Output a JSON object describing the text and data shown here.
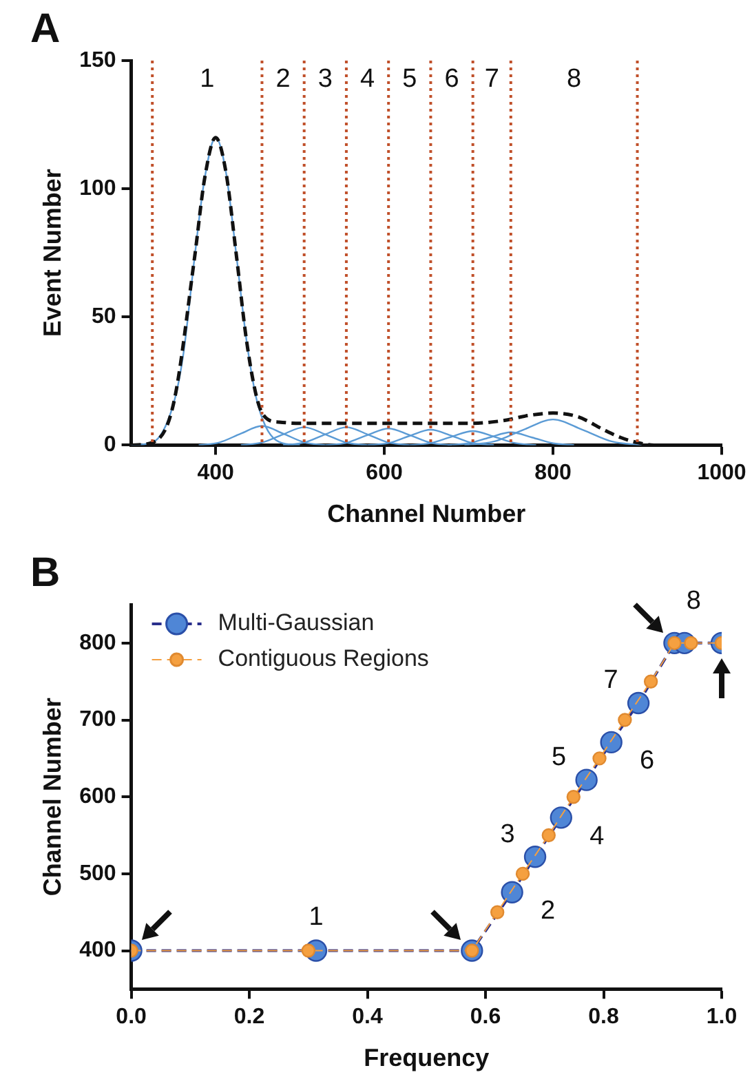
{
  "chart_data": [
    {
      "type": "line",
      "title": "A",
      "xlabel": "Channel Number",
      "ylabel": "Event Number",
      "xlim": [
        300,
        1000
      ],
      "xticks": [
        400,
        600,
        800,
        1000
      ],
      "ylim": [
        0,
        150
      ],
      "yticks": [
        0,
        50,
        100,
        150
      ],
      "grid": false,
      "legend": false,
      "series": [
        {
          "color": "#5b9bd5",
          "x": [
            300,
            325,
            350,
            362,
            375,
            387,
            400,
            412,
            425,
            437,
            450,
            475,
            500
          ],
          "values": [
            0,
            1,
            16,
            36,
            73,
            104,
            120,
            107,
            73,
            40,
            16,
            1.3,
            0
          ]
        },
        {
          "color": "#5b9bd5",
          "x": [
            380,
            405,
            430,
            455,
            480,
            505,
            530
          ],
          "values": [
            0,
            1.1,
            4.5,
            7.5,
            4.5,
            1.1,
            0
          ]
        },
        {
          "color": "#5b9bd5",
          "x": [
            430,
            455,
            480,
            505,
            530,
            555,
            580
          ],
          "values": [
            0,
            1,
            4.2,
            7,
            4.2,
            1,
            0
          ]
        },
        {
          "color": "#5b9bd5",
          "x": [
            480,
            505,
            530,
            555,
            580,
            605,
            630
          ],
          "values": [
            0,
            1,
            4.2,
            7,
            4.2,
            1,
            0
          ]
        },
        {
          "color": "#5b9bd5",
          "x": [
            530,
            555,
            580,
            605,
            630,
            655,
            680
          ],
          "values": [
            0,
            0.9,
            3.9,
            6.5,
            3.9,
            0.9,
            0
          ]
        },
        {
          "color": "#5b9bd5",
          "x": [
            580,
            605,
            630,
            655,
            680,
            705,
            730
          ],
          "values": [
            0,
            0.8,
            3.6,
            6,
            3.6,
            0.8,
            0
          ]
        },
        {
          "color": "#5b9bd5",
          "x": [
            630,
            655,
            680,
            705,
            730,
            755,
            780
          ],
          "values": [
            0,
            0.8,
            3.3,
            5.5,
            3.3,
            0.8,
            0
          ]
        },
        {
          "color": "#5b9bd5",
          "x": [
            675,
            700,
            725,
            750,
            775,
            800,
            825
          ],
          "values": [
            0,
            0.7,
            3,
            5,
            3,
            0.7,
            0
          ]
        },
        {
          "color": "#5b9bd5",
          "x": [
            695,
            730,
            765,
            800,
            835,
            870,
            905
          ],
          "values": [
            0,
            1.4,
            6,
            10,
            6,
            1.4,
            0
          ]
        },
        {
          "color": "#111111",
          "line_style": "dashed",
          "x": [
            300,
            325,
            350,
            375,
            387,
            400,
            412,
            425,
            437,
            450,
            462,
            475,
            500,
            600,
            700,
            740,
            770,
            800,
            830,
            860,
            880,
            900,
            920,
            1000
          ],
          "values": [
            0,
            1,
            16,
            73,
            104,
            120,
            107,
            73,
            40,
            17,
            10,
            9,
            8.5,
            8.5,
            8.5,
            9.5,
            11.5,
            12.5,
            11,
            6,
            3,
            1,
            0,
            0
          ]
        }
      ],
      "ref_lines": [
        {
          "axis": "x",
          "value": 325,
          "color": "#c0502a",
          "line_style": "dotted"
        },
        {
          "axis": "x",
          "value": 455,
          "color": "#c0502a",
          "line_style": "dotted"
        },
        {
          "axis": "x",
          "value": 505,
          "color": "#c0502a",
          "line_style": "dotted"
        },
        {
          "axis": "x",
          "value": 555,
          "color": "#c0502a",
          "line_style": "dotted"
        },
        {
          "axis": "x",
          "value": 605,
          "color": "#c0502a",
          "line_style": "dotted"
        },
        {
          "axis": "x",
          "value": 655,
          "color": "#c0502a",
          "line_style": "dotted"
        },
        {
          "axis": "x",
          "value": 705,
          "color": "#c0502a",
          "line_style": "dotted"
        },
        {
          "axis": "x",
          "value": 750,
          "color": "#c0502a",
          "line_style": "dotted"
        },
        {
          "axis": "x",
          "value": 900,
          "color": "#c0502a",
          "line_style": "dotted"
        }
      ],
      "annotations": [
        "1",
        "2",
        "3",
        "4",
        "5",
        "6",
        "7",
        "8"
      ]
    },
    {
      "type": "line",
      "title": "B",
      "xlabel": "Frequency",
      "ylabel": "Channel Number",
      "xlim": [
        0,
        1
      ],
      "xticks": [
        {
          "value": 0,
          "label": "0.0"
        },
        {
          "value": 0.2,
          "label": "0.2"
        },
        {
          "value": 0.4,
          "label": "0.4"
        },
        {
          "value": 0.6,
          "label": "0.6"
        },
        {
          "value": 0.8,
          "label": "0.8"
        },
        {
          "value": 1,
          "label": "1.0"
        }
      ],
      "ylim": [
        350,
        850
      ],
      "yticks": [
        400,
        500,
        600,
        700,
        800
      ],
      "grid": false,
      "legend": "top left",
      "marker": "circle",
      "line_style": "dashed",
      "series": [
        {
          "name": "Multi-Gaussian",
          "color": "#4f86d6",
          "x": [
            0,
            0.313,
            0.577,
            0.645,
            0.684,
            0.728,
            0.771,
            0.813,
            0.859,
            0.92,
            0.937,
            1
          ],
          "values": [
            400,
            400,
            400,
            476,
            522,
            573,
            622,
            671,
            722,
            800,
            800,
            800
          ]
        },
        {
          "name": "Contiguous Regions",
          "color": "#f5a040",
          "x": [
            0,
            0.3,
            0.577,
            0.62,
            0.663,
            0.707,
            0.749,
            0.793,
            0.836,
            0.88,
            0.92,
            0.948,
            1
          ],
          "values": [
            400,
            400,
            400,
            450,
            500,
            550,
            600,
            650,
            700,
            750,
            800,
            800,
            800
          ]
        }
      ],
      "annotations": [
        {
          "text": "1",
          "x": 0.313,
          "y": 400
        },
        {
          "text": "2",
          "x": 0.645,
          "y": 476
        },
        {
          "text": "3",
          "x": 0.684,
          "y": 522
        },
        {
          "text": "4",
          "x": 0.728,
          "y": 573
        },
        {
          "text": "5",
          "x": 0.771,
          "y": 622
        },
        {
          "text": "6",
          "x": 0.813,
          "y": 671
        },
        {
          "text": "7",
          "x": 0.859,
          "y": 722
        },
        {
          "text": "8",
          "x": 0.92,
          "y": 800
        }
      ]
    }
  ]
}
